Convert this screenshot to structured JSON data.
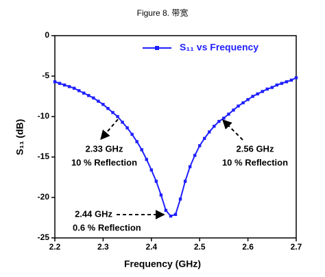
{
  "chart_data": {
    "type": "line",
    "title": "Figure 8. 带宽",
    "xlabel": "Frequency (GHz)",
    "ylabel": "S₁₁ (dB)",
    "x": [
      2.2,
      2.21,
      2.22,
      2.23,
      2.24,
      2.25,
      2.26,
      2.27,
      2.28,
      2.29,
      2.3,
      2.31,
      2.32,
      2.33,
      2.34,
      2.35,
      2.36,
      2.37,
      2.38,
      2.39,
      2.4,
      2.41,
      2.42,
      2.43,
      2.44,
      2.45,
      2.46,
      2.47,
      2.48,
      2.49,
      2.5,
      2.51,
      2.52,
      2.53,
      2.54,
      2.55,
      2.56,
      2.57,
      2.58,
      2.59,
      2.6,
      2.61,
      2.62,
      2.63,
      2.64,
      2.65,
      2.66,
      2.67,
      2.68,
      2.69,
      2.7
    ],
    "series": [
      {
        "name": "S₁₁ vs Frequency",
        "color": "#1f1fff",
        "values": [
          -5.7,
          -5.9,
          -6.1,
          -6.3,
          -6.5,
          -6.8,
          -7.1,
          -7.4,
          -7.7,
          -8.1,
          -8.5,
          -9.0,
          -9.5,
          -10.0,
          -10.7,
          -11.4,
          -12.2,
          -13.1,
          -14.1,
          -15.3,
          -16.6,
          -18.0,
          -19.7,
          -21.6,
          -22.3,
          -22.1,
          -20.2,
          -18.0,
          -16.2,
          -14.8,
          -13.6,
          -12.7,
          -11.9,
          -11.2,
          -10.6,
          -10.2,
          -9.7,
          -9.2,
          -8.7,
          -8.3,
          -7.9,
          -7.5,
          -7.2,
          -6.9,
          -6.6,
          -6.4,
          -6.1,
          -5.9,
          -5.7,
          -5.5,
          -5.2
        ]
      }
    ],
    "xlim": [
      2.2,
      2.7
    ],
    "xticks": [
      2.2,
      2.3,
      2.4,
      2.5,
      2.6,
      2.7
    ],
    "ylim": [
      -25,
      0
    ],
    "yticks": [
      0,
      -5,
      -10,
      -15,
      -20,
      -25
    ],
    "annotations": [
      {
        "lines": [
          "2.33 GHz",
          "10 % Reflection"
        ]
      },
      {
        "lines": [
          "2.56 GHz",
          "10 % Reflection"
        ]
      },
      {
        "lines": [
          "2.44 GHz",
          "0.6 % Reflection"
        ]
      }
    ]
  }
}
